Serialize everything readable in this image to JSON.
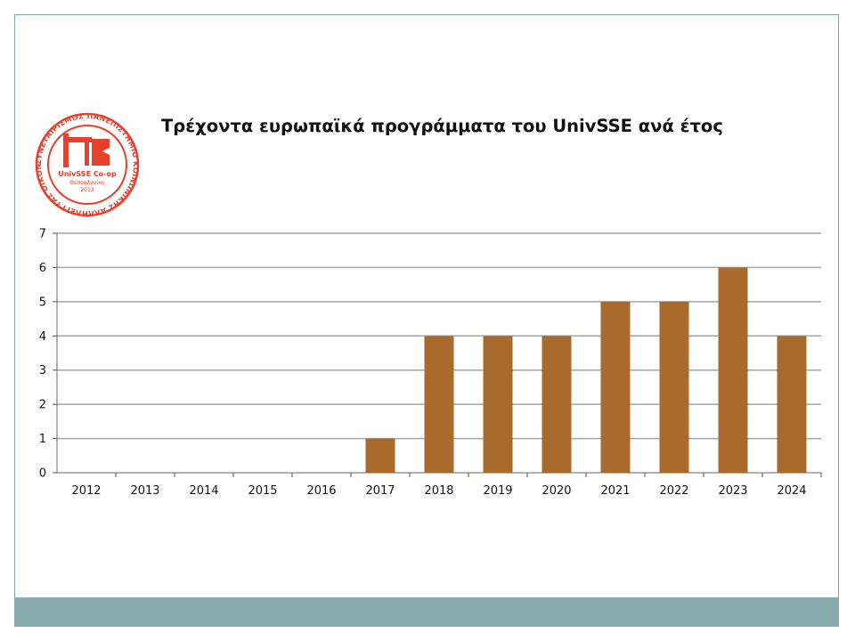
{
  "slide": {
    "title": "Τρέχοντα ευρωπαϊκά προγράμματα του UnivSSE ανά έτος"
  },
  "logo": {
    "icon": "univsse-coop-seal",
    "ring_text": "ΣΥΝΕΤΑΙΡΙΣΜΟΣ ΠΑΝΕΠΙΣΤΗΜΙΟ ΚΟΙΝΩΝΙΚΗΣ ΑΛΛΗΛΕΓΓΥΑΣ ΟΙΚΟΝΟΜΙΑΣ",
    "name": "UnivSSE Co-op",
    "city": "Θεσσαλονίκη",
    "year": "2013",
    "color": "#e8402a"
  },
  "colors": {
    "bar": "#a86b2d",
    "grid": "#a6a6a6",
    "footer": "#86aaa9",
    "frame": "#7fa6a6"
  },
  "chart_data": {
    "type": "bar",
    "title": "Τρέχοντα ευρωπαϊκά προγράμματα του UnivSSE ανά έτος",
    "categories": [
      "2012",
      "2013",
      "2014",
      "2015",
      "2016",
      "2017",
      "2018",
      "2019",
      "2020",
      "2021",
      "2022",
      "2023",
      "2024"
    ],
    "values": [
      0,
      0,
      0,
      0,
      0,
      1,
      4,
      4,
      4,
      5,
      5,
      6,
      4
    ],
    "ylim": [
      0,
      7
    ],
    "yticks": [
      "0",
      "1",
      "2",
      "3",
      "4",
      "5",
      "6",
      "7"
    ],
    "grid": true,
    "legend": "none"
  }
}
